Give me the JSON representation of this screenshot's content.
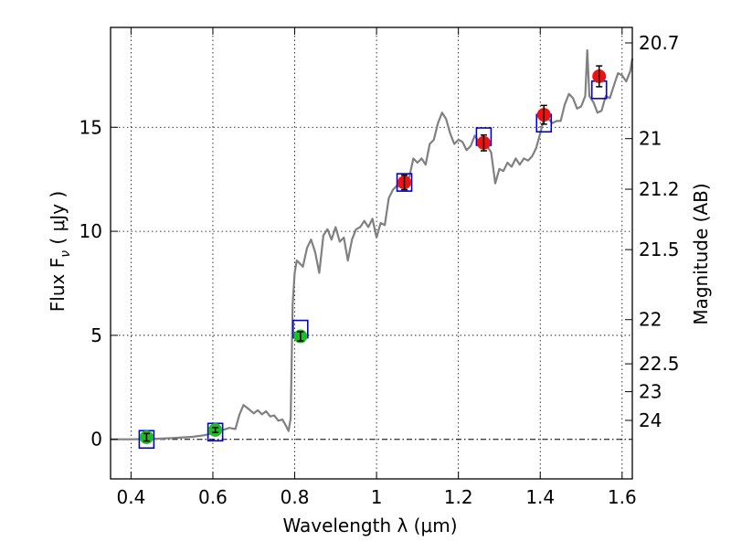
{
  "chart_data": {
    "type": "line",
    "xlabel": "Wavelength  λ (μm)",
    "ylabel": "Flux  F",
    "ylabel_subscript": "ν",
    "ylabel_suffix": "  ( μJy )",
    "ylabel_right": "Magnitude (AB)",
    "xlim": [
      0.35,
      1.625
    ],
    "ylim": [
      -1.9,
      19.8
    ],
    "grid": true,
    "xticks": [
      0.4,
      0.6,
      0.8,
      1.0,
      1.2,
      1.4,
      1.6
    ],
    "xtick_labels": [
      "0.4",
      "0.6",
      "0.8",
      "1",
      "1.2",
      "1.4",
      "1.6"
    ],
    "yticks": [
      0,
      5,
      10,
      15
    ],
    "ytick_labels": [
      "0",
      "5",
      "10",
      "15"
    ],
    "right_ticks": [
      {
        "label": "20.7",
        "mag": 20.7
      },
      {
        "label": "21",
        "mag": 21.0
      },
      {
        "label": "21.2",
        "mag": 21.2
      },
      {
        "label": "21.5",
        "mag": 21.5
      },
      {
        "label": "22",
        "mag": 22.0
      },
      {
        "label": "22.5",
        "mag": 22.5
      },
      {
        "label": "23",
        "mag": 23.0
      },
      {
        "label": "24",
        "mag": 24.0
      }
    ],
    "colors": {
      "model": "#808080",
      "green_points": "#22bb22",
      "red_points": "#ee1111",
      "model_boxes": "#0000dd",
      "zero_line": "#000000"
    },
    "series": [
      {
        "type": "line",
        "x": [
          0.35,
          0.4,
          0.45,
          0.5,
          0.55,
          0.58,
          0.6,
          0.62,
          0.64,
          0.655,
          0.665,
          0.675,
          0.685,
          0.7,
          0.71,
          0.72,
          0.73,
          0.74,
          0.75,
          0.76,
          0.77,
          0.78,
          0.785,
          0.79,
          0.795,
          0.8,
          0.805,
          0.81,
          0.82,
          0.83,
          0.84,
          0.85,
          0.86,
          0.87,
          0.88,
          0.89,
          0.9,
          0.91,
          0.92,
          0.93,
          0.94,
          0.95,
          0.96,
          0.97,
          0.98,
          0.99,
          1.0,
          1.01,
          1.02,
          1.03,
          1.04,
          1.05,
          1.06,
          1.07,
          1.08,
          1.09,
          1.1,
          1.11,
          1.12,
          1.13,
          1.14,
          1.15,
          1.16,
          1.17,
          1.18,
          1.19,
          1.2,
          1.21,
          1.22,
          1.23,
          1.24,
          1.25,
          1.26,
          1.27,
          1.28,
          1.29,
          1.3,
          1.31,
          1.32,
          1.33,
          1.34,
          1.35,
          1.36,
          1.37,
          1.38,
          1.39,
          1.4,
          1.41,
          1.42,
          1.43,
          1.44,
          1.45,
          1.46,
          1.47,
          1.48,
          1.49,
          1.5,
          1.51,
          1.515,
          1.52,
          1.53,
          1.54,
          1.55,
          1.56,
          1.57,
          1.58,
          1.59,
          1.6,
          1.61,
          1.62,
          1.625
        ],
        "y": [
          0.0,
          0.0,
          0.02,
          0.06,
          0.12,
          0.2,
          0.3,
          0.42,
          0.55,
          0.5,
          1.2,
          1.65,
          1.5,
          1.25,
          1.4,
          1.2,
          1.35,
          1.1,
          1.15,
          0.9,
          0.95,
          0.6,
          0.4,
          1.0,
          6.5,
          8.0,
          8.6,
          8.5,
          8.3,
          9.2,
          9.6,
          9.0,
          8.0,
          9.8,
          10.1,
          9.6,
          10.2,
          9.5,
          9.7,
          8.6,
          9.6,
          10.1,
          10.2,
          10.5,
          10.2,
          10.6,
          9.7,
          10.4,
          10.3,
          11.6,
          12.0,
          12.2,
          12.1,
          12.5,
          12.6,
          13.5,
          13.3,
          13.5,
          13.2,
          14.2,
          14.4,
          15.2,
          15.7,
          15.4,
          14.7,
          14.2,
          14.4,
          14.3,
          13.9,
          14.1,
          14.6,
          14.3,
          14.6,
          14.1,
          13.8,
          12.3,
          13.0,
          12.9,
          13.3,
          13.1,
          13.5,
          13.2,
          13.5,
          13.4,
          13.6,
          14.0,
          14.7,
          15.5,
          15.4,
          15.2,
          15.3,
          15.3,
          16.1,
          16.6,
          16.4,
          15.9,
          16.0,
          16.5,
          18.7,
          16.5,
          16.2,
          15.7,
          15.8,
          16.5,
          16.4,
          17.0,
          17.6,
          17.5,
          17.2,
          17.7,
          18.3
        ]
      },
      {
        "type": "scatter",
        "name": "",
        "x": [
          0.438,
          0.606,
          0.814
        ],
        "y": [
          0.1,
          0.45,
          4.95
        ],
        "yerr": [
          0.18,
          0.12,
          0.22
        ]
      },
      {
        "type": "scatter",
        "name": "",
        "x": [
          1.068,
          1.262,
          1.409,
          1.544
        ],
        "y": [
          12.35,
          14.25,
          15.6,
          17.45
        ],
        "yerr": [
          0.35,
          0.38,
          0.45,
          0.5
        ]
      },
      {
        "type": "scatter",
        "name": "",
        "x": [
          0.438,
          0.606,
          0.814,
          1.068,
          1.262,
          1.409,
          1.544
        ],
        "y": [
          0.0,
          0.35,
          5.3,
          12.35,
          14.55,
          15.2,
          16.8
        ]
      }
    ]
  }
}
